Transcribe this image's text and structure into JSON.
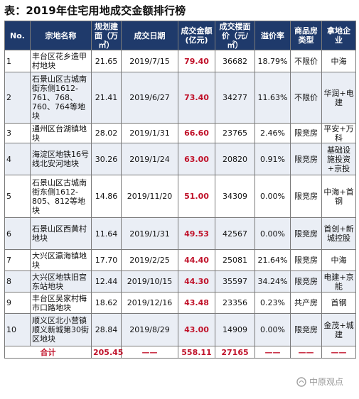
{
  "title": "表：2019年住宅用地成交金额排行榜",
  "headers": [
    "No.",
    "宗地名称",
    "规划建面（万㎡）",
    "成交日期",
    "成交金额(亿元)",
    "成交楼面价（元/㎡）",
    "溢价率",
    "商品房类型",
    "拿地企业"
  ],
  "rows": [
    {
      "no": "1",
      "name": "丰台区花乡造甲村地块",
      "area": "21.65",
      "date": "2019/7/15",
      "amount": "79.40",
      "price": "36682",
      "premium": "18.79%",
      "type": "不限价",
      "company": "中海"
    },
    {
      "no": "2",
      "name": "石景山区古城南街东侧1612-761、768、760、764等地块",
      "area": "21.41",
      "date": "2019/6/27",
      "amount": "73.40",
      "price": "34277",
      "premium": "11.63%",
      "type": "不限价",
      "company": "华润+电建"
    },
    {
      "no": "3",
      "name": "通州区台湖镇地块",
      "area": "28.02",
      "date": "2019/1/31",
      "amount": "66.60",
      "price": "23765",
      "premium": "2.46%",
      "type": "限竞房",
      "company": "平安+万科"
    },
    {
      "no": "4",
      "name": "海淀区地铁16号线北安河地块",
      "area": "30.26",
      "date": "2019/1/24",
      "amount": "63.00",
      "price": "20820",
      "premium": "0.91%",
      "type": "限竞房",
      "company": "基础设施投资+京投"
    },
    {
      "no": "5",
      "name": "石景山区古城南街东侧1612-805、812等地块",
      "area": "14.86",
      "date": "2019/11/20",
      "amount": "51.00",
      "price": "34309",
      "premium": "0.00%",
      "type": "限竞房",
      "company": "中海+首钢"
    },
    {
      "no": "6",
      "name": "石景山区西黄村地块",
      "area": "11.64",
      "date": "2019/1/31",
      "amount": "49.53",
      "price": "42567",
      "premium": "0.00%",
      "type": "限竞房",
      "company": "首创+新城控股"
    },
    {
      "no": "7",
      "name": "大兴区瀛海镇地块",
      "area": "17.70",
      "date": "2019/2/25",
      "amount": "44.40",
      "price": "25081",
      "premium": "21.64%",
      "type": "限竞房",
      "company": "中海"
    },
    {
      "no": "8",
      "name": "大兴区地铁旧宫东站地块",
      "area": "12.44",
      "date": "2019/10/15",
      "amount": "44.30",
      "price": "35597",
      "premium": "34.24%",
      "type": "限竞房",
      "company": "电建+京能"
    },
    {
      "no": "9",
      "name": "丰台区吴家村梅市口路地块",
      "area": "18.62",
      "date": "2019/12/16",
      "amount": "43.48",
      "price": "23356",
      "premium": "0.23%",
      "type": "共产房",
      "company": "首钢"
    },
    {
      "no": "10",
      "name": "顺义区北小营镇顺义新城第30街区地块",
      "area": "28.84",
      "date": "2019/8/29",
      "amount": "43.00",
      "price": "14909",
      "premium": "0.00%",
      "type": "限竞房",
      "company": "金茂+城建"
    }
  ],
  "total": {
    "label": "合计",
    "area": "205.45",
    "date": "——",
    "amount": "558.11",
    "price": "27165",
    "premium": "——",
    "type": "——",
    "company": "——"
  },
  "watermark": "中原观点"
}
